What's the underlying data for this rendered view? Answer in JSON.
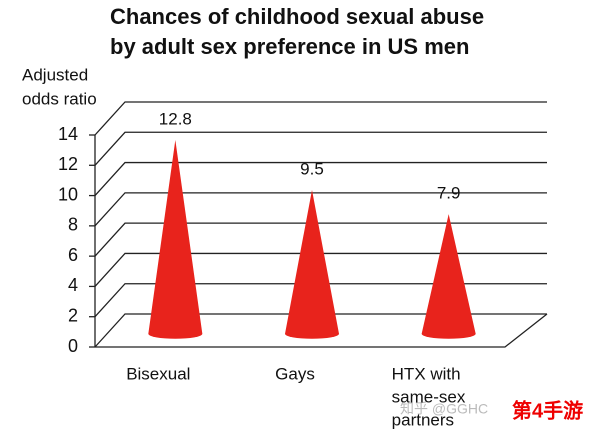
{
  "chart_data": {
    "type": "cone",
    "title": [
      "Chances of childhood sexual abuse",
      "by adult sex preference in US men"
    ],
    "y_label": [
      "Adjusted",
      "odds ratio"
    ],
    "categories": [
      "Bisexual",
      "Gays",
      [
        "HTX with",
        "same-sex",
        "partners"
      ]
    ],
    "values": [
      12.8,
      9.5,
      7.9
    ],
    "value_labels": [
      "12.8",
      "9.5",
      "7.9"
    ],
    "color": "#e8231c",
    "ylim": [
      0,
      14
    ],
    "yticks": [
      0,
      2,
      4,
      6,
      8,
      10,
      12,
      14
    ],
    "grid": true,
    "watermark": [
      "知乎 @GGHC",
      "第4手游"
    ]
  }
}
